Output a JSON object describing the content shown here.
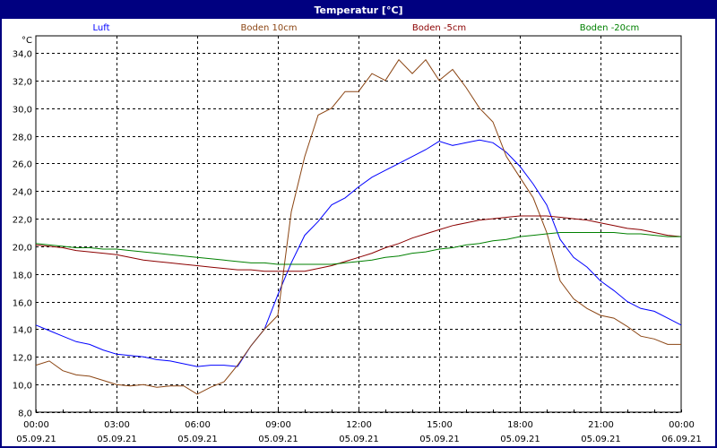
{
  "window": {
    "title": "Temperatur [°C]"
  },
  "chart_data": {
    "type": "line",
    "title": "Temperatur [°C]",
    "ylabel": "°C",
    "ylim": [
      8,
      34
    ],
    "yticks": [
      "8,0",
      "10,0",
      "12,0",
      "14,0",
      "16,0",
      "18,0",
      "20,0",
      "22,0",
      "24,0",
      "26,0",
      "28,0",
      "30,0",
      "32,0",
      "34,0"
    ],
    "xlim_hours": [
      0,
      24
    ],
    "xticks": [
      {
        "time": "00:00",
        "date": "05.09.21"
      },
      {
        "time": "03:00",
        "date": "05.09.21"
      },
      {
        "time": "06:00",
        "date": "05.09.21"
      },
      {
        "time": "09:00",
        "date": "05.09.21"
      },
      {
        "time": "12:00",
        "date": "05.09.21"
      },
      {
        "time": "15:00",
        "date": "05.09.21"
      },
      {
        "time": "18:00",
        "date": "05.09.21"
      },
      {
        "time": "21:00",
        "date": "05.09.21"
      },
      {
        "time": "00:00",
        "date": "06.09.21"
      }
    ],
    "grid": true,
    "legend_position": "top",
    "x_hours": [
      0,
      0.5,
      1,
      1.5,
      2,
      2.5,
      3,
      3.5,
      4,
      4.5,
      5,
      5.5,
      6,
      6.5,
      7,
      7.5,
      8,
      8.5,
      9,
      9.5,
      10,
      10.5,
      11,
      11.5,
      12,
      12.5,
      13,
      13.5,
      14,
      14.5,
      15,
      15.5,
      16,
      16.5,
      17,
      17.5,
      18,
      18.5,
      19,
      19.5,
      20,
      20.5,
      21,
      21.5,
      22,
      22.5,
      23,
      23.5,
      24
    ],
    "series": [
      {
        "name": "Luft",
        "color": "#0000ff",
        "values": [
          14.3,
          13.9,
          13.5,
          13.1,
          12.9,
          12.5,
          12.2,
          12.1,
          12.0,
          11.8,
          11.7,
          11.5,
          11.3,
          11.4,
          11.4,
          11.3,
          12.8,
          14.0,
          16.5,
          18.8,
          20.8,
          21.8,
          23.0,
          23.5,
          24.3,
          25.0,
          25.5,
          26.0,
          26.5,
          27.0,
          27.6,
          27.3,
          27.5,
          27.7,
          27.5,
          26.8,
          25.8,
          24.5,
          23.0,
          20.5,
          19.2,
          18.5,
          17.5,
          16.8,
          16.0,
          15.5,
          15.3,
          14.8,
          14.3
        ]
      },
      {
        "name": "Boden 10cm",
        "color": "#8b4513",
        "values": [
          11.4,
          11.7,
          11.0,
          10.7,
          10.6,
          10.3,
          10.0,
          9.9,
          10.0,
          9.8,
          9.9,
          9.9,
          9.3,
          9.8,
          10.2,
          11.4,
          12.8,
          14.0,
          15.0,
          22.5,
          26.5,
          29.5,
          30.0,
          31.2,
          31.2,
          32.5,
          32.0,
          33.5,
          32.5,
          33.5,
          32.0,
          32.8,
          31.5,
          30.0,
          29.0,
          26.5,
          25.0,
          23.5,
          21.0,
          17.5,
          16.2,
          15.5,
          15.0,
          14.8,
          14.2,
          13.5,
          13.3,
          12.9,
          12.9
        ]
      },
      {
        "name": "Boden -5cm",
        "color": "#8b0000",
        "values": [
          20.1,
          20.0,
          19.9,
          19.7,
          19.6,
          19.5,
          19.4,
          19.2,
          19.0,
          18.9,
          18.8,
          18.7,
          18.6,
          18.5,
          18.4,
          18.3,
          18.3,
          18.2,
          18.2,
          18.2,
          18.2,
          18.4,
          18.6,
          18.9,
          19.2,
          19.5,
          19.9,
          20.2,
          20.6,
          20.9,
          21.2,
          21.5,
          21.7,
          21.9,
          22.0,
          22.1,
          22.2,
          22.2,
          22.2,
          22.1,
          22.0,
          21.9,
          21.7,
          21.5,
          21.3,
          21.2,
          21.0,
          20.8,
          20.7
        ]
      },
      {
        "name": "Boden -20cm",
        "color": "#008000",
        "values": [
          20.2,
          20.1,
          20.0,
          19.9,
          19.9,
          19.8,
          19.8,
          19.7,
          19.6,
          19.5,
          19.4,
          19.3,
          19.2,
          19.1,
          19.0,
          18.9,
          18.8,
          18.8,
          18.7,
          18.7,
          18.7,
          18.7,
          18.7,
          18.8,
          18.9,
          19.0,
          19.2,
          19.3,
          19.5,
          19.6,
          19.8,
          19.9,
          20.1,
          20.2,
          20.4,
          20.5,
          20.7,
          20.8,
          20.9,
          21.0,
          21.0,
          21.0,
          21.0,
          21.0,
          20.9,
          20.9,
          20.8,
          20.7,
          20.7
        ]
      }
    ]
  }
}
